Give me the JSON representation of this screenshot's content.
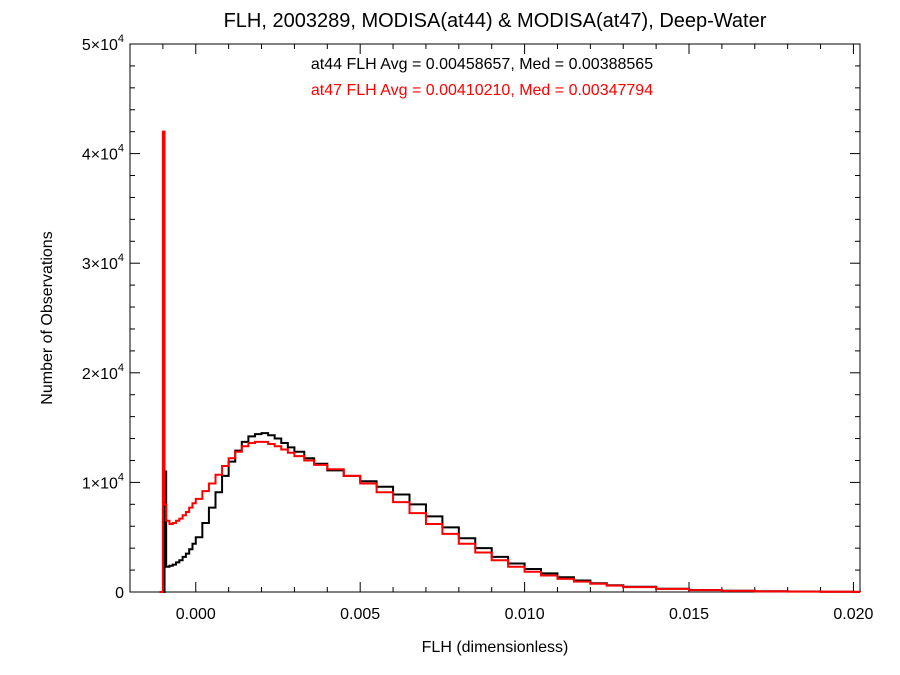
{
  "chart_data": {
    "type": "line",
    "title": "FLH, 2003289, MODISA(at44) & MODISA(at47), Deep-Water",
    "xlabel": "FLH (dimensionless)",
    "ylabel": "Number of Observations",
    "xlim": [
      -0.002,
      0.0202
    ],
    "ylim": [
      0,
      50000
    ],
    "x_ticks": [
      {
        "value": 0.0,
        "label": "0.000"
      },
      {
        "value": 0.005,
        "label": "0.005"
      },
      {
        "value": 0.01,
        "label": "0.010"
      },
      {
        "value": 0.015,
        "label": "0.015"
      },
      {
        "value": 0.02,
        "label": "0.020"
      }
    ],
    "y_ticks": [
      {
        "value": 0,
        "label": "0",
        "mantissa": "",
        "exponent": ""
      },
      {
        "value": 10000,
        "label": "1×10",
        "mantissa": "1×10",
        "exponent": "4"
      },
      {
        "value": 20000,
        "label": "2×10",
        "mantissa": "2×10",
        "exponent": "4"
      },
      {
        "value": 30000,
        "label": "3×10",
        "mantissa": "3×10",
        "exponent": "4"
      },
      {
        "value": 40000,
        "label": "4×10",
        "mantissa": "4×10",
        "exponent": "4"
      },
      {
        "value": 50000,
        "label": "5×10",
        "mantissa": "5×10",
        "exponent": "4"
      }
    ],
    "annotations": [
      {
        "text": "at44 FLH Avg = 0.00458657, Med = 0.00388565",
        "color": "#000000"
      },
      {
        "text": "at47 FLH Avg = 0.00410210, Med = 0.00347794",
        "color": "#ff0000"
      }
    ],
    "series": [
      {
        "color": "#000000",
        "x": [
          -0.0011,
          -0.001,
          -0.00095,
          -0.0009,
          -0.0008,
          -0.0007,
          -0.0006,
          -0.0005,
          -0.0004,
          -0.0003,
          -0.0002,
          -0.0001,
          0.0,
          0.0002,
          0.0004,
          0.0006,
          0.0008,
          0.001,
          0.0012,
          0.0014,
          0.0016,
          0.0018,
          0.002,
          0.0022,
          0.0024,
          0.0026,
          0.0028,
          0.003,
          0.0033,
          0.0036,
          0.004,
          0.0045,
          0.005,
          0.0055,
          0.006,
          0.0065,
          0.007,
          0.0075,
          0.008,
          0.0085,
          0.009,
          0.0095,
          0.01,
          0.0105,
          0.011,
          0.0115,
          0.012,
          0.0125,
          0.013,
          0.014,
          0.015,
          0.016,
          0.017,
          0.018,
          0.019,
          0.02,
          0.0202
        ],
        "y": [
          0,
          0,
          11000,
          2300,
          2400,
          2500,
          2700,
          2900,
          3200,
          3500,
          3900,
          4400,
          5000,
          6300,
          7700,
          9100,
          10600,
          11900,
          12900,
          13700,
          14200,
          14400,
          14500,
          14300,
          14000,
          13600,
          13200,
          12800,
          12200,
          11700,
          11100,
          10600,
          10100,
          9600,
          8900,
          8000,
          6900,
          5900,
          4900,
          4000,
          3200,
          2600,
          2100,
          1700,
          1350,
          1050,
          800,
          620,
          480,
          300,
          180,
          110,
          70,
          40,
          20,
          10,
          5
        ]
      },
      {
        "color": "#ff0000",
        "x": [
          -0.0011,
          -0.001,
          -0.00095,
          -0.0009,
          -0.0008,
          -0.0007,
          -0.0006,
          -0.0005,
          -0.0004,
          -0.0003,
          -0.0002,
          -0.0001,
          0.0,
          0.0002,
          0.0004,
          0.0006,
          0.0008,
          0.001,
          0.0012,
          0.0014,
          0.0016,
          0.0018,
          0.002,
          0.0022,
          0.0024,
          0.0026,
          0.0028,
          0.003,
          0.0033,
          0.0036,
          0.004,
          0.0045,
          0.005,
          0.0055,
          0.006,
          0.0065,
          0.007,
          0.0075,
          0.008,
          0.0085,
          0.009,
          0.0095,
          0.01,
          0.0105,
          0.011,
          0.0115,
          0.012,
          0.0125,
          0.013,
          0.014,
          0.015,
          0.016,
          0.017,
          0.018,
          0.019,
          0.02,
          0.0202
        ],
        "y": [
          0,
          42000,
          8000,
          6500,
          6200,
          6300,
          6500,
          6700,
          7000,
          7300,
          7700,
          8100,
          8500,
          9200,
          9900,
          10700,
          11500,
          12200,
          12800,
          13300,
          13600,
          13700,
          13700,
          13500,
          13300,
          13000,
          12700,
          12400,
          12000,
          11600,
          11200,
          10600,
          9900,
          9100,
          8200,
          7200,
          6200,
          5300,
          4400,
          3600,
          2900,
          2300,
          1850,
          1500,
          1200,
          950,
          750,
          580,
          450,
          280,
          170,
          100,
          60,
          35,
          18,
          8,
          4
        ]
      }
    ],
    "grid": false,
    "legend": "none"
  }
}
